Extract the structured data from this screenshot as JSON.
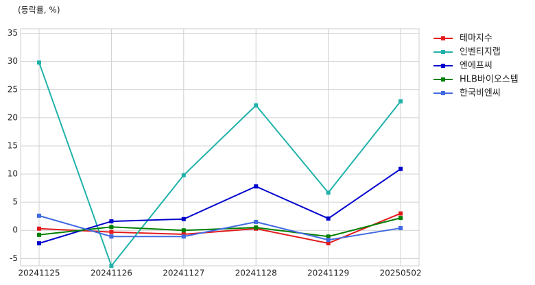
{
  "chart_data": {
    "type": "line",
    "y_label": "(등락률, %)",
    "categories": [
      "20241125",
      "20241126",
      "20241127",
      "20241128",
      "20241129",
      "20250502"
    ],
    "series": [
      {
        "name": "테마지수",
        "color": "#e31a1c",
        "values": [
          0.3,
          -0.3,
          -0.7,
          0.3,
          -2.3,
          3.0
        ]
      },
      {
        "name": "인벤티지랩",
        "color": "#20b2aa",
        "values": [
          29.8,
          -6.3,
          9.8,
          22.2,
          6.7,
          22.9
        ]
      },
      {
        "name": "엔에프씨",
        "color": "#0000cd",
        "values": [
          -2.3,
          1.6,
          2.0,
          7.8,
          2.1,
          10.9
        ]
      },
      {
        "name": "HLB바이오스텝",
        "color": "#008000",
        "values": [
          -0.8,
          0.6,
          0.0,
          0.5,
          -1.1,
          2.2
        ]
      },
      {
        "name": "한국비엔씨",
        "color": "#4169e1",
        "values": [
          2.6,
          -1.1,
          -1.1,
          1.5,
          -1.7,
          0.4
        ]
      }
    ],
    "ylim": [
      -6.3,
      35.8
    ],
    "yticks": [
      -5,
      0,
      5,
      10,
      15,
      20,
      25,
      30,
      35
    ],
    "grid": true,
    "legend": "outside-right"
  }
}
